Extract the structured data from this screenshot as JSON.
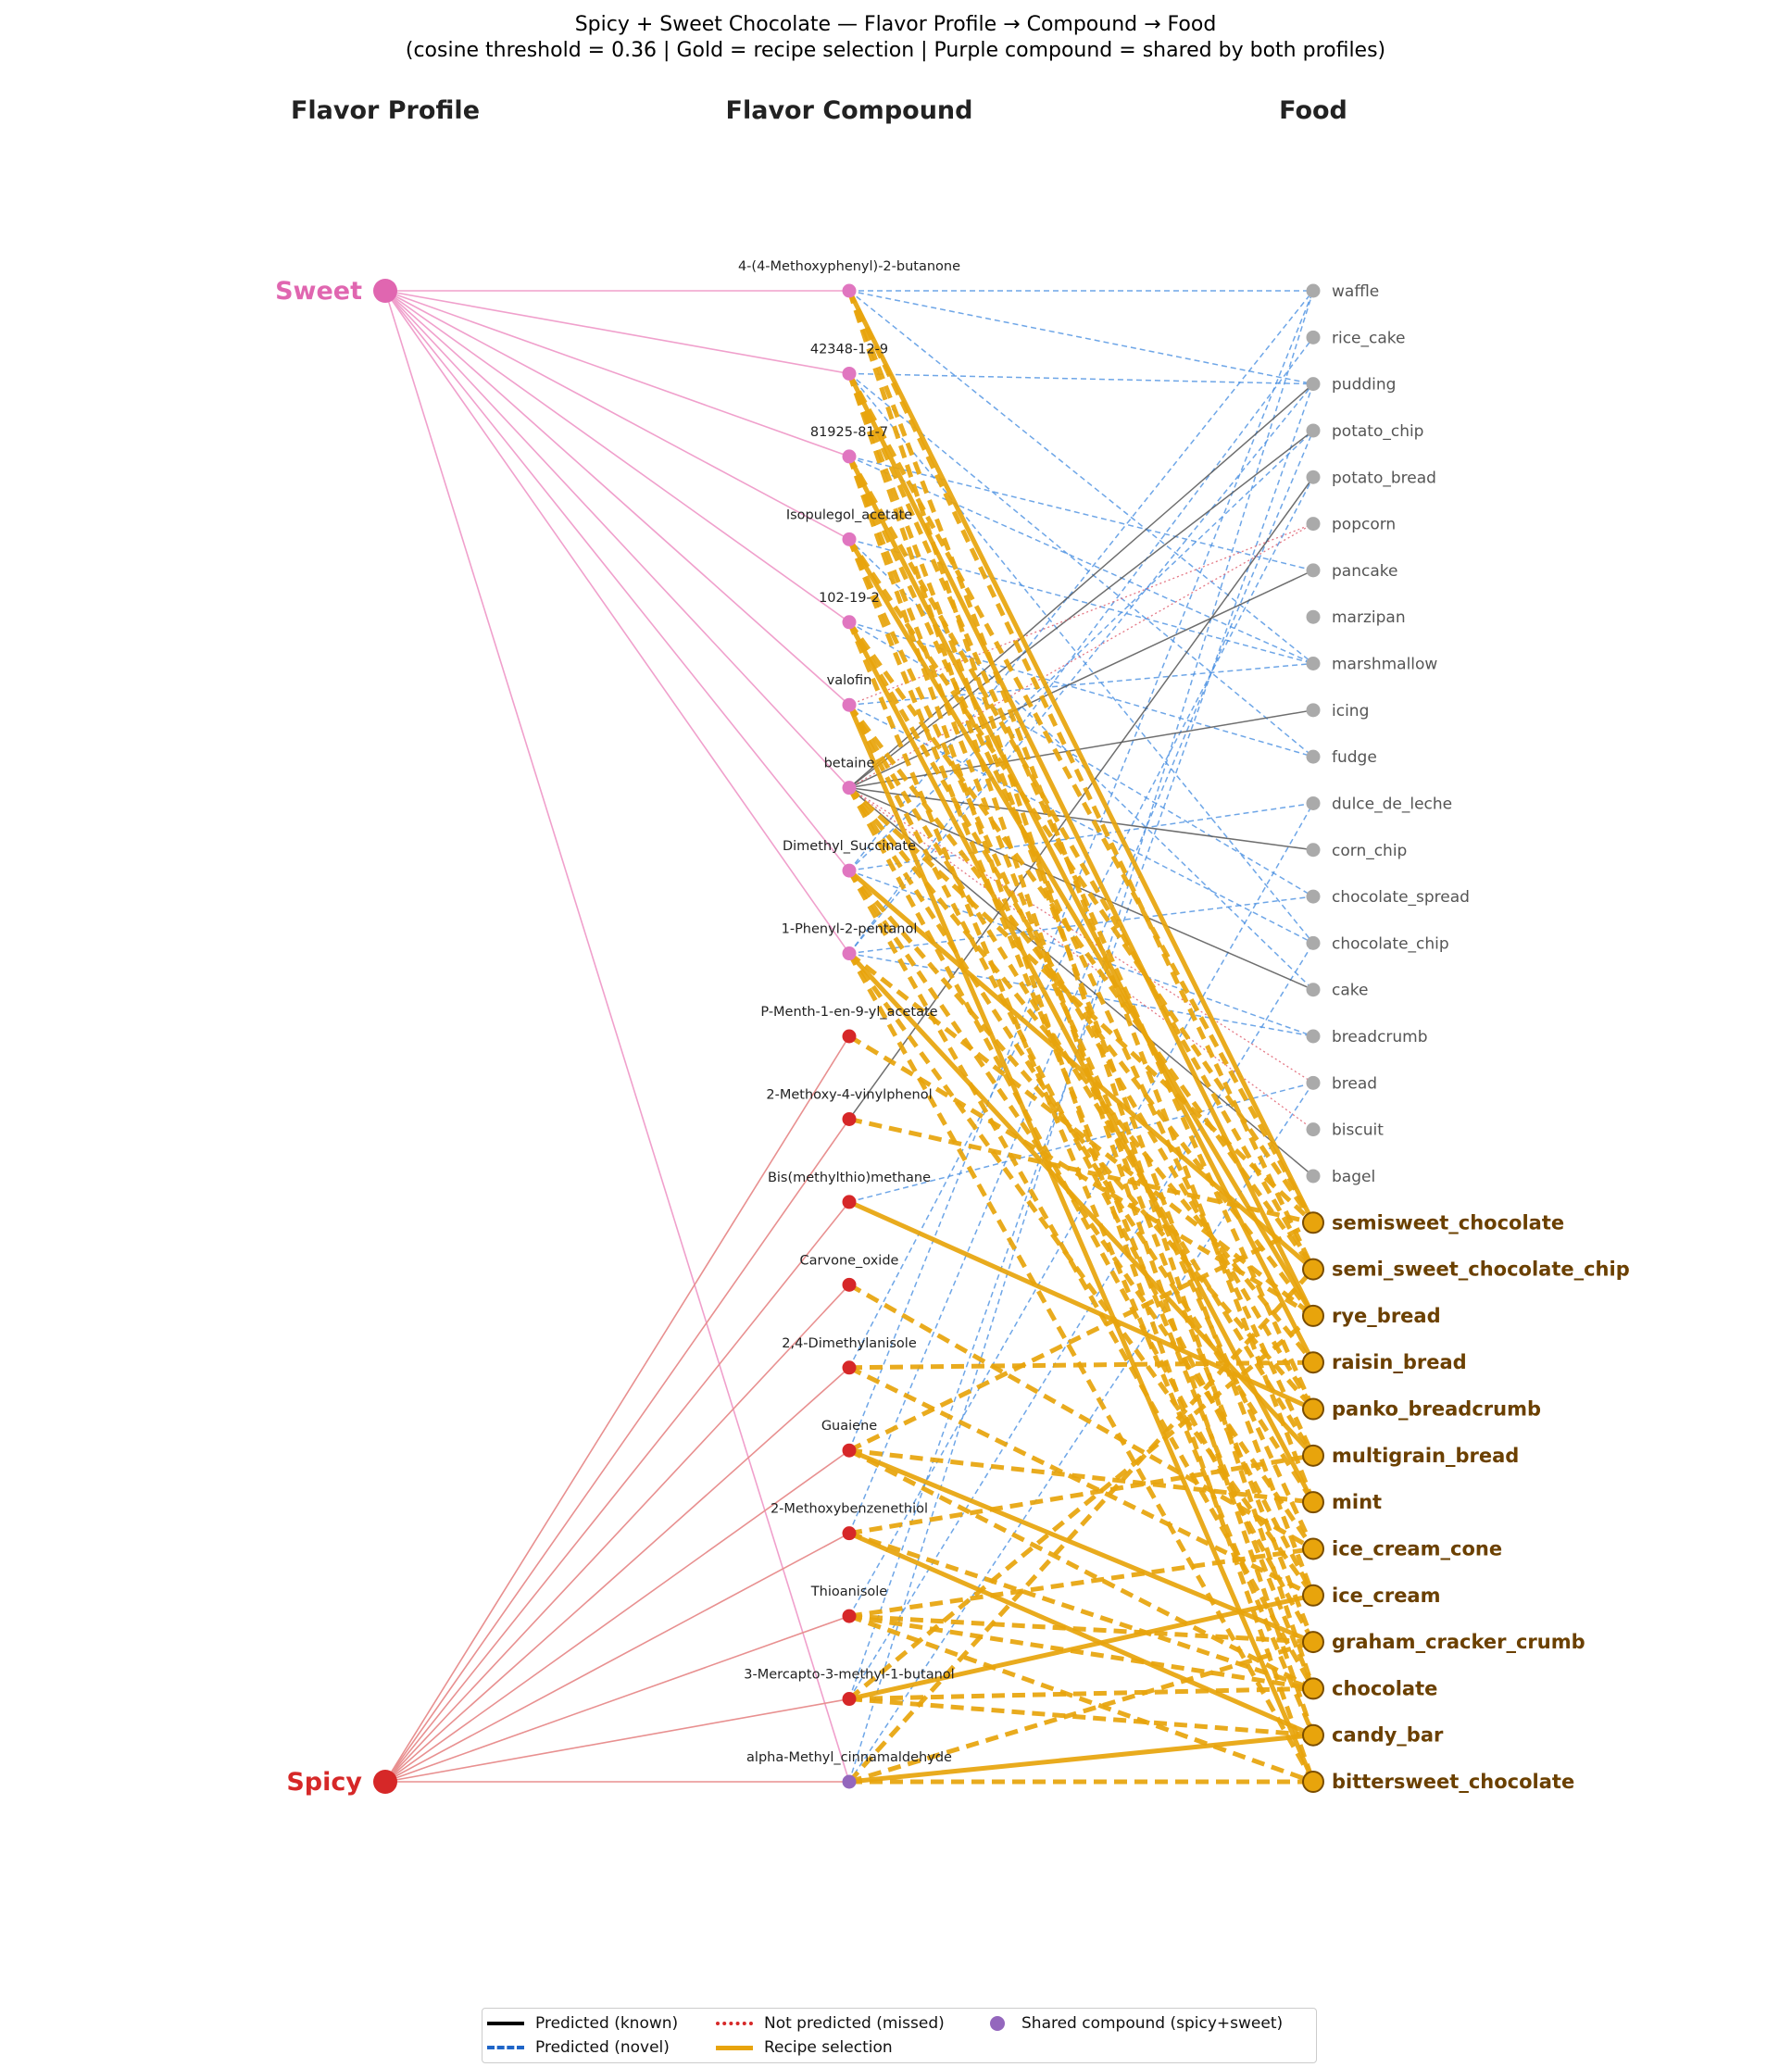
{
  "title": "Spicy + Sweet Chocolate — Flavor Profile → Compound → Food",
  "subtitle": "(cosine threshold = 0.36  |  Gold = recipe selection  |  Purple compound = shared by both profiles)",
  "column_headers": [
    "Flavor Profile",
    "Flavor Compound",
    "Food"
  ],
  "profiles": [
    {
      "name": "Sweet",
      "color": "#e066b0"
    },
    {
      "name": "Spicy",
      "color": "#d62828"
    }
  ],
  "compounds": [
    {
      "name": "4-(4-Methoxyphenyl)-2-butanone",
      "group": "sweet"
    },
    {
      "name": "42348-12-9",
      "group": "sweet"
    },
    {
      "name": "81925-81-7",
      "group": "sweet"
    },
    {
      "name": "Isopulegol_acetate",
      "group": "sweet"
    },
    {
      "name": "102-19-2",
      "group": "sweet"
    },
    {
      "name": "valofin",
      "group": "sweet"
    },
    {
      "name": "betaine",
      "group": "sweet"
    },
    {
      "name": "Dimethyl_Succinate",
      "group": "sweet"
    },
    {
      "name": "1-Phenyl-2-pentanol",
      "group": "sweet"
    },
    {
      "name": "P-Menth-1-en-9-yl_acetate",
      "group": "spicy"
    },
    {
      "name": "2-Methoxy-4-vinylphenol",
      "group": "spicy"
    },
    {
      "name": "Bis(methylthio)methane",
      "group": "spicy"
    },
    {
      "name": "Carvone_oxide",
      "group": "spicy"
    },
    {
      "name": "2,4-Dimethylanisole",
      "group": "spicy"
    },
    {
      "name": "Guaiene",
      "group": "spicy"
    },
    {
      "name": "2-Methoxybenzenethiol",
      "group": "spicy"
    },
    {
      "name": "Thioanisole",
      "group": "spicy"
    },
    {
      "name": "3-Mercapto-3-methyl-1-butanol",
      "group": "spicy"
    },
    {
      "name": "alpha-Methyl_cinnamaldehyde",
      "group": "shared"
    }
  ],
  "foods": [
    {
      "name": "waffle",
      "selected": false
    },
    {
      "name": "rice_cake",
      "selected": false
    },
    {
      "name": "pudding",
      "selected": false
    },
    {
      "name": "potato_chip",
      "selected": false
    },
    {
      "name": "potato_bread",
      "selected": false
    },
    {
      "name": "popcorn",
      "selected": false
    },
    {
      "name": "pancake",
      "selected": false
    },
    {
      "name": "marzipan",
      "selected": false
    },
    {
      "name": "marshmallow",
      "selected": false
    },
    {
      "name": "icing",
      "selected": false
    },
    {
      "name": "fudge",
      "selected": false
    },
    {
      "name": "dulce_de_leche",
      "selected": false
    },
    {
      "name": "corn_chip",
      "selected": false
    },
    {
      "name": "chocolate_spread",
      "selected": false
    },
    {
      "name": "chocolate_chip",
      "selected": false
    },
    {
      "name": "cake",
      "selected": false
    },
    {
      "name": "breadcrumb",
      "selected": false
    },
    {
      "name": "bread",
      "selected": false
    },
    {
      "name": "biscuit",
      "selected": false
    },
    {
      "name": "bagel",
      "selected": false
    },
    {
      "name": "semisweet_chocolate",
      "selected": true
    },
    {
      "name": "semi_sweet_chocolate_chip",
      "selected": true
    },
    {
      "name": "rye_bread",
      "selected": true
    },
    {
      "name": "raisin_bread",
      "selected": true
    },
    {
      "name": "panko_breadcrumb",
      "selected": true
    },
    {
      "name": "multigrain_bread",
      "selected": true
    },
    {
      "name": "mint",
      "selected": true
    },
    {
      "name": "ice_cream_cone",
      "selected": true
    },
    {
      "name": "ice_cream",
      "selected": true
    },
    {
      "name": "graham_cracker_crumb",
      "selected": true
    },
    {
      "name": "chocolate",
      "selected": true
    },
    {
      "name": "candy_bar",
      "selected": true
    },
    {
      "name": "bittersweet_chocolate",
      "selected": true
    }
  ],
  "profile_links": {
    "Sweet": [
      0,
      1,
      2,
      3,
      4,
      5,
      6,
      7,
      8,
      18
    ],
    "Spicy": [
      9,
      10,
      11,
      12,
      13,
      14,
      15,
      16,
      17,
      18
    ]
  },
  "edges": {
    "known": [
      [
        6,
        2
      ],
      [
        6,
        3
      ],
      [
        6,
        6
      ],
      [
        6,
        9
      ],
      [
        6,
        12
      ],
      [
        6,
        15
      ],
      [
        6,
        19
      ],
      [
        10,
        4
      ]
    ],
    "novel": [
      [
        0,
        0
      ],
      [
        0,
        2
      ],
      [
        0,
        8
      ],
      [
        1,
        2
      ],
      [
        1,
        10
      ],
      [
        1,
        14
      ],
      [
        2,
        6
      ],
      [
        2,
        8
      ],
      [
        3,
        8
      ],
      [
        3,
        15
      ],
      [
        4,
        10
      ],
      [
        4,
        13
      ],
      [
        5,
        14
      ],
      [
        5,
        8
      ],
      [
        7,
        3
      ],
      [
        7,
        0
      ],
      [
        7,
        11
      ],
      [
        7,
        16
      ],
      [
        8,
        1
      ],
      [
        8,
        2
      ],
      [
        8,
        13
      ],
      [
        8,
        16
      ],
      [
        11,
        17
      ],
      [
        13,
        4
      ],
      [
        14,
        0
      ],
      [
        15,
        3
      ],
      [
        16,
        11
      ],
      [
        17,
        2
      ],
      [
        17,
        14
      ],
      [
        18,
        17
      ],
      [
        18,
        0
      ]
    ],
    "missed": [
      [
        6,
        5
      ],
      [
        6,
        17
      ],
      [
        6,
        18
      ],
      [
        5,
        5
      ]
    ],
    "recipe": [
      [
        0,
        20
      ],
      [
        0,
        21
      ],
      [
        0,
        26
      ],
      [
        0,
        30
      ],
      [
        1,
        20
      ],
      [
        1,
        22
      ],
      [
        1,
        24
      ],
      [
        1,
        28
      ],
      [
        1,
        31
      ],
      [
        2,
        21
      ],
      [
        2,
        23
      ],
      [
        2,
        25
      ],
      [
        2,
        29
      ],
      [
        2,
        32
      ],
      [
        3,
        20
      ],
      [
        3,
        22
      ],
      [
        3,
        27
      ],
      [
        3,
        30
      ],
      [
        4,
        21
      ],
      [
        4,
        24
      ],
      [
        4,
        26
      ],
      [
        4,
        31
      ],
      [
        5,
        22
      ],
      [
        5,
        25
      ],
      [
        5,
        28
      ],
      [
        5,
        32
      ],
      [
        6,
        20
      ],
      [
        6,
        23
      ],
      [
        6,
        26
      ],
      [
        6,
        29
      ],
      [
        7,
        21
      ],
      [
        7,
        24
      ],
      [
        7,
        27
      ],
      [
        7,
        30
      ],
      [
        8,
        22
      ],
      [
        8,
        25
      ],
      [
        8,
        28
      ],
      [
        8,
        32
      ],
      [
        9,
        22
      ],
      [
        10,
        20
      ],
      [
        11,
        24
      ],
      [
        12,
        27
      ],
      [
        13,
        23
      ],
      [
        13,
        28
      ],
      [
        14,
        26
      ],
      [
        14,
        29
      ],
      [
        14,
        30
      ],
      [
        14,
        20
      ],
      [
        15,
        25
      ],
      [
        15,
        30
      ],
      [
        15,
        31
      ],
      [
        16,
        27
      ],
      [
        16,
        29
      ],
      [
        16,
        30
      ],
      [
        16,
        32
      ],
      [
        17,
        28
      ],
      [
        17,
        31
      ],
      [
        17,
        30
      ],
      [
        17,
        22
      ],
      [
        18,
        29
      ],
      [
        18,
        31
      ],
      [
        18,
        32
      ],
      [
        18,
        21
      ]
    ]
  },
  "legend": [
    {
      "label": "Predicted (known)",
      "style": "solid",
      "color": "#000000"
    },
    {
      "label": "Not predicted (missed)",
      "style": "dotted",
      "color": "#d62828"
    },
    {
      "label": "Shared compound (spicy+sweet)",
      "style": "dot",
      "color": "#9467bd"
    },
    {
      "label": "Predicted (novel)",
      "style": "dashed",
      "color": "#1f65c8"
    },
    {
      "label": "Recipe selection",
      "style": "solid",
      "color": "#e8a40c"
    }
  ],
  "colors": {
    "sweet_compound": "#e076c0",
    "spicy_compound": "#d62728",
    "shared_compound": "#9467bd",
    "food_default": "#aaaaaa",
    "food_selected": "#e8a40c",
    "food_selected_text": "#6b4000",
    "recipe": "#e8a40c",
    "novel": "#4a90e2",
    "known": "#555555",
    "missed": "#e06070"
  }
}
